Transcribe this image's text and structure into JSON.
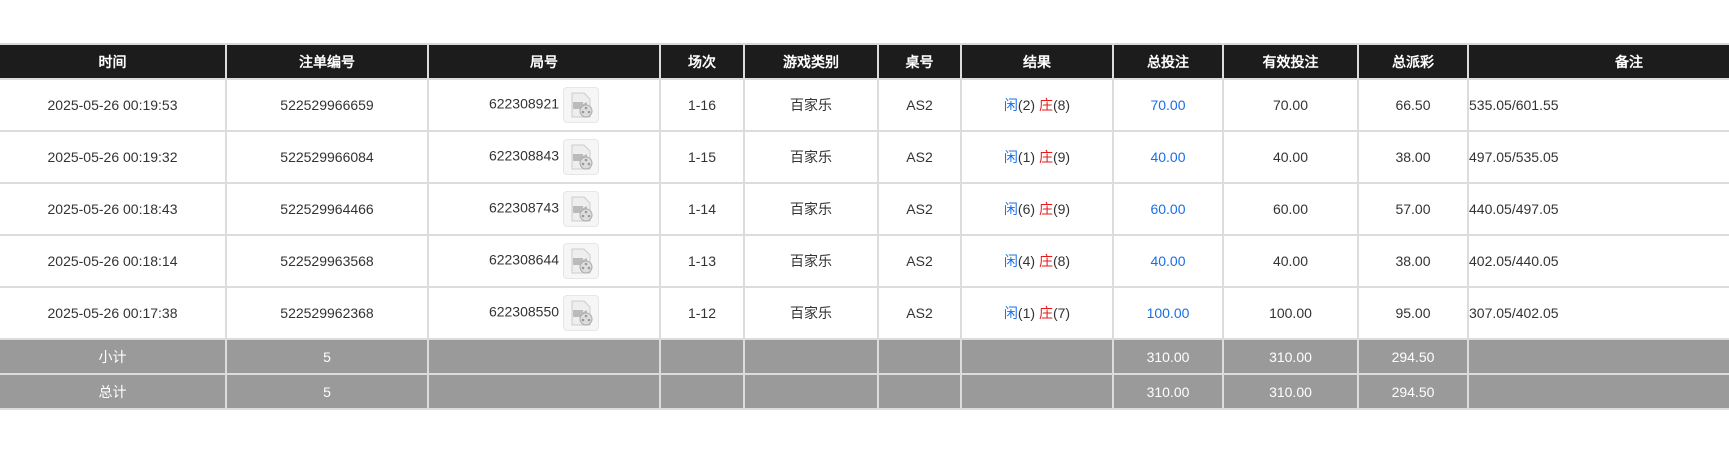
{
  "headers": [
    "时间",
    "注单编号",
    "局号",
    "场次",
    "游戏类别",
    "桌号",
    "结果",
    "总投注",
    "有效投注",
    "总派彩",
    "备注"
  ],
  "rows": [
    {
      "time": "2025-05-26 00:19:53",
      "bet_id": "522529966659",
      "round": "622308921",
      "session": "1-16",
      "game": "百家乐",
      "table": "AS2",
      "player_label": "闲",
      "player": "(2)",
      "banker_label": "庄",
      "banker": "(8)",
      "total_bet": "70.00",
      "valid_bet": "70.00",
      "payout": "66.50",
      "remark": "535.05/601.55"
    },
    {
      "time": "2025-05-26 00:19:32",
      "bet_id": "522529966084",
      "round": "622308843",
      "session": "1-15",
      "game": "百家乐",
      "table": "AS2",
      "player_label": "闲",
      "player": "(1)",
      "banker_label": "庄",
      "banker": "(9)",
      "total_bet": "40.00",
      "valid_bet": "40.00",
      "payout": "38.00",
      "remark": "497.05/535.05"
    },
    {
      "time": "2025-05-26 00:18:43",
      "bet_id": "522529964466",
      "round": "622308743",
      "session": "1-14",
      "game": "百家乐",
      "table": "AS2",
      "player_label": "闲",
      "player": "(6)",
      "banker_label": "庄",
      "banker": "(9)",
      "total_bet": "60.00",
      "valid_bet": "60.00",
      "payout": "57.00",
      "remark": "440.05/497.05"
    },
    {
      "time": "2025-05-26 00:18:14",
      "bet_id": "522529963568",
      "round": "622308644",
      "session": "1-13",
      "game": "百家乐",
      "table": "AS2",
      "player_label": "闲",
      "player": "(4)",
      "banker_label": "庄",
      "banker": "(8)",
      "total_bet": "40.00",
      "valid_bet": "40.00",
      "payout": "38.00",
      "remark": "402.05/440.05"
    },
    {
      "time": "2025-05-26 00:17:38",
      "bet_id": "522529962368",
      "round": "622308550",
      "session": "1-12",
      "game": "百家乐",
      "table": "AS2",
      "player_label": "闲",
      "player": "(1)",
      "banker_label": "庄",
      "banker": "(7)",
      "total_bet": "100.00",
      "valid_bet": "100.00",
      "payout": "95.00",
      "remark": "307.05/402.05"
    }
  ],
  "subtotal": {
    "label": "小计",
    "count": "5",
    "total_bet": "310.00",
    "valid_bet": "310.00",
    "payout": "294.50"
  },
  "total": {
    "label": "总计",
    "count": "5",
    "total_bet": "310.00",
    "valid_bet": "310.00",
    "payout": "294.50"
  },
  "colors": {
    "header_bg": "#1c1c1c",
    "footer_bg": "#9a9a9a",
    "player": "#1a6fe8",
    "banker": "#e81a1a"
  },
  "icons": {
    "replay": "video-replay-icon"
  }
}
